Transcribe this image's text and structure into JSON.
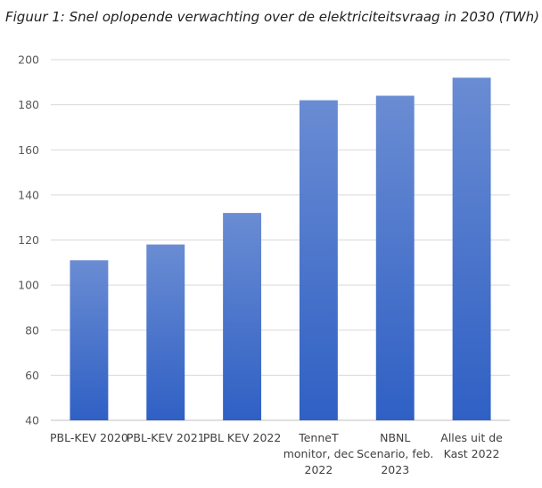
{
  "caption": "Figuur 1: Snel oplopende verwachting over de elektriciteitsvraag in 2030 (TWh)",
  "chart_data": {
    "type": "bar",
    "title": "Figuur 1: Snel oplopende verwachting over de elektriciteitsvraag in 2030 (TWh)",
    "xlabel": "",
    "ylabel": "",
    "categories": [
      [
        "PBL-KEV 2020"
      ],
      [
        "PBL-KEV 2021"
      ],
      [
        "PBL KEV 2022"
      ],
      [
        "TenneT",
        "monitor, dec",
        "2022"
      ],
      [
        "NBNL",
        "Scenario, feb.",
        "2023"
      ],
      [
        "Alles uit de",
        "Kast 2022"
      ]
    ],
    "values": [
      111,
      118,
      132,
      182,
      184,
      192
    ],
    "ylim": [
      40,
      200
    ],
    "yticks": [
      40,
      60,
      80,
      100,
      120,
      140,
      160,
      180,
      200
    ],
    "grid": true,
    "legend": "none",
    "colors": {
      "bar_top": "#6a8cd3",
      "bar_bottom": "#2f60c4",
      "grid": "#d9d9d9",
      "axis": "#bfbfbf"
    }
  }
}
